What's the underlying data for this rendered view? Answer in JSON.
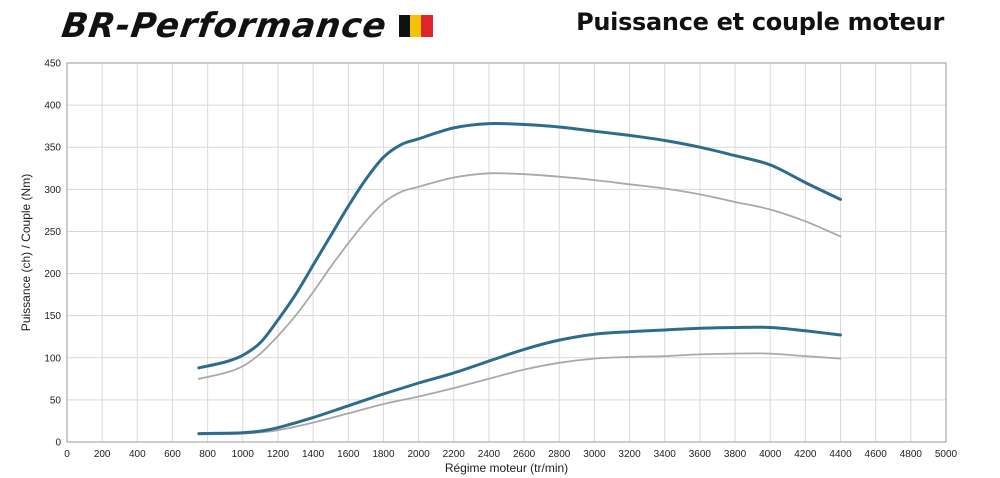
{
  "header": {
    "logo_text": "BR-Performance",
    "title": "Puissance et couple moteur"
  },
  "colors": {
    "tuned": "#2e6c8e",
    "stock": "#a9a9a9",
    "grid": "#d9d9d9",
    "flag": [
      "#111111",
      "#f5c400",
      "#e0242b"
    ]
  },
  "chart_data": {
    "type": "line",
    "xlabel": "Régime moteur (tr/min)",
    "ylabel": "Puissance (ch) / Couple (Nm)",
    "xlim": [
      0,
      5000
    ],
    "ylim": [
      0,
      450
    ],
    "x_ticks": [
      0,
      200,
      400,
      600,
      800,
      1000,
      1200,
      1400,
      1600,
      1800,
      2000,
      2200,
      2400,
      2600,
      2800,
      3000,
      3200,
      3400,
      3600,
      3800,
      4000,
      4200,
      4400,
      4600,
      4800,
      5000
    ],
    "y_ticks": [
      0,
      50,
      100,
      150,
      200,
      250,
      300,
      350,
      400,
      450
    ],
    "grid": true,
    "series": [
      {
        "role": "torque-tuned",
        "x": [
          750,
          900,
          1000,
          1100,
          1200,
          1300,
          1400,
          1500,
          1600,
          1700,
          1800,
          1900,
          2000,
          2200,
          2400,
          2600,
          2800,
          3000,
          3200,
          3400,
          3600,
          3800,
          4000,
          4200,
          4400
        ],
        "values": [
          88,
          95,
          103,
          118,
          145,
          175,
          210,
          245,
          280,
          312,
          338,
          353,
          360,
          373,
          378,
          377,
          374,
          369,
          364,
          358,
          350,
          340,
          329,
          308,
          288
        ]
      },
      {
        "role": "torque-stock",
        "x": [
          750,
          900,
          1000,
          1100,
          1200,
          1300,
          1400,
          1500,
          1600,
          1700,
          1800,
          1900,
          2000,
          2200,
          2400,
          2600,
          2800,
          3000,
          3200,
          3400,
          3600,
          3800,
          4000,
          4200,
          4400
        ],
        "values": [
          75,
          82,
          90,
          105,
          126,
          150,
          178,
          208,
          236,
          262,
          284,
          297,
          303,
          314,
          319,
          318,
          315,
          311,
          306,
          301,
          294,
          285,
          276,
          262,
          244
        ]
      },
      {
        "role": "power-tuned",
        "x": [
          750,
          900,
          1000,
          1100,
          1200,
          1400,
          1600,
          1800,
          2000,
          2200,
          2400,
          2600,
          2800,
          3000,
          3200,
          3400,
          3600,
          3800,
          4000,
          4200,
          4400
        ],
        "values": [
          10,
          10.5,
          11,
          13,
          17,
          29,
          43,
          57,
          70,
          82,
          96,
          110,
          121,
          128,
          131,
          133,
          135,
          136,
          136,
          132,
          127
        ]
      },
      {
        "role": "power-stock",
        "x": [
          750,
          900,
          1000,
          1100,
          1200,
          1400,
          1600,
          1800,
          2000,
          2200,
          2400,
          2600,
          2800,
          3000,
          3200,
          3400,
          3600,
          3800,
          4000,
          4200,
          4400
        ],
        "values": [
          9,
          9.5,
          10,
          11.5,
          14,
          23,
          34,
          45,
          54,
          64,
          75,
          86,
          94,
          99,
          101,
          102,
          104,
          105,
          105,
          102,
          99
        ]
      }
    ]
  }
}
